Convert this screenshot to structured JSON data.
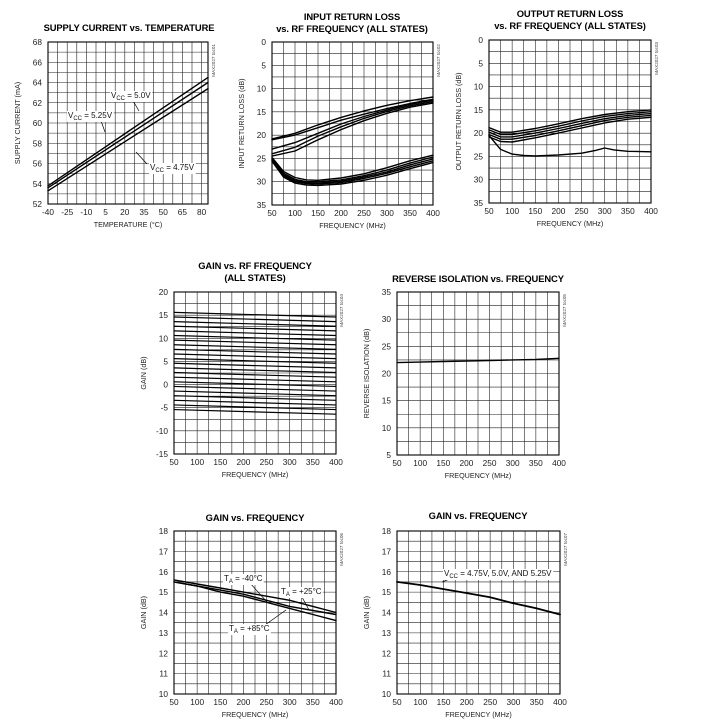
{
  "chart_data": [
    {
      "id": "supply-current",
      "type": "line",
      "title": "SUPPLY CURRENT vs. TEMPERATURE",
      "xlabel": "TEMPERATURE (°C)",
      "ylabel": "SUPPLY CURRENT (mA)",
      "side_label": "MAX2027 toc01",
      "xlim": [
        -40,
        85
      ],
      "ylim": [
        52,
        68
      ],
      "xticks": [
        -40,
        -25,
        -10,
        5,
        20,
        35,
        50,
        65,
        80
      ],
      "yticks": [
        52,
        54,
        56,
        58,
        60,
        62,
        64,
        66,
        68
      ],
      "grid": true,
      "series": [
        {
          "name": "VCC = 5.25V",
          "x": [
            -40,
            85
          ],
          "y": [
            53.8,
            64.5
          ]
        },
        {
          "name": "VCC = 5.0V",
          "x": [
            -40,
            85
          ],
          "y": [
            53.6,
            64.0
          ]
        },
        {
          "name": "VCC = 4.75V",
          "x": [
            -40,
            85
          ],
          "y": [
            53.3,
            63.4
          ]
        }
      ],
      "annotations": [
        {
          "text": "V",
          "sub": "CC",
          "rest": " = 5.0V"
        },
        {
          "text": "V",
          "sub": "CC",
          "rest": " = 5.25V"
        },
        {
          "text": "V",
          "sub": "CC",
          "rest": " = 4.75V"
        }
      ]
    },
    {
      "id": "input-return-loss",
      "type": "line",
      "title": "INPUT RETURN LOSS",
      "title2": "vs. RF FREQUENCY (ALL STATES)",
      "xlabel": "FREQUENCY (MHz)",
      "ylabel": "INPUT RETURN LOSS (dB)",
      "side_label": "MAX2027 toc02",
      "xlim": [
        50,
        400
      ],
      "ylim": [
        0,
        35
      ],
      "y_inverted": true,
      "xticks": [
        50,
        100,
        150,
        200,
        250,
        300,
        350,
        400
      ],
      "yticks": [
        0,
        5,
        10,
        15,
        20,
        25,
        30,
        35
      ],
      "grid": true,
      "series": [
        {
          "x": [
            50,
            100,
            150,
            200,
            250,
            300,
            350,
            400
          ],
          "y": [
            20.8,
            19.6,
            17.8,
            16.2,
            14.8,
            13.6,
            12.6,
            11.8
          ]
        },
        {
          "x": [
            50,
            100,
            150,
            200,
            250,
            300,
            350,
            400
          ],
          "y": [
            21.0,
            20.0,
            18.4,
            16.8,
            15.5,
            14.3,
            13.2,
            12.3
          ]
        },
        {
          "x": [
            50,
            100,
            150,
            200,
            250,
            300,
            350,
            400
          ],
          "y": [
            23.0,
            21.6,
            19.6,
            17.6,
            16.0,
            14.6,
            13.4,
            12.5
          ]
        },
        {
          "x": [
            50,
            100,
            150,
            200,
            250,
            300,
            350,
            400
          ],
          "y": [
            24.0,
            22.6,
            20.2,
            18.2,
            16.4,
            14.9,
            13.7,
            12.8
          ]
        },
        {
          "x": [
            50,
            100,
            150,
            200,
            250,
            300,
            350,
            400
          ],
          "y": [
            24.5,
            23.4,
            21.0,
            18.8,
            16.9,
            15.3,
            14.0,
            13.1
          ]
        },
        {
          "x": [
            50,
            75,
            100,
            125,
            150,
            200,
            250,
            300,
            350,
            400
          ],
          "y": [
            24.8,
            27.8,
            29.1,
            29.6,
            29.7,
            29.2,
            28.3,
            27.0,
            25.5,
            24.3
          ]
        },
        {
          "x": [
            50,
            75,
            100,
            125,
            150,
            200,
            250,
            300,
            350,
            400
          ],
          "y": [
            25.0,
            28.2,
            29.5,
            30.0,
            30.0,
            29.6,
            28.7,
            27.5,
            26.0,
            24.7
          ]
        },
        {
          "x": [
            50,
            75,
            100,
            125,
            150,
            200,
            250,
            300,
            350,
            400
          ],
          "y": [
            25.2,
            28.5,
            29.8,
            30.2,
            30.3,
            29.9,
            29.0,
            27.9,
            26.4,
            25.1
          ]
        },
        {
          "x": [
            50,
            75,
            100,
            125,
            150,
            200,
            250,
            300,
            350,
            400
          ],
          "y": [
            25.4,
            28.7,
            30.0,
            30.4,
            30.5,
            30.2,
            29.3,
            28.2,
            26.8,
            25.5
          ]
        },
        {
          "x": [
            50,
            75,
            100,
            125,
            150,
            200,
            250,
            300,
            350,
            400
          ],
          "y": [
            25.6,
            29.0,
            30.3,
            30.7,
            30.8,
            30.5,
            29.7,
            28.6,
            27.2,
            25.9
          ]
        }
      ]
    },
    {
      "id": "output-return-loss",
      "type": "line",
      "title": "OUTPUT RETURN LOSS",
      "title2": "vs. RF FREQUENCY (ALL STATES)",
      "xlabel": "FREQUENCY (MHz)",
      "ylabel": "OUTPUT RETURN LOSS (dB)",
      "side_label": "MAX2027 toc03",
      "xlim": [
        50,
        400
      ],
      "ylim": [
        0,
        35
      ],
      "y_inverted": true,
      "xticks": [
        50,
        100,
        150,
        200,
        250,
        300,
        350,
        400
      ],
      "yticks": [
        0,
        5,
        10,
        15,
        20,
        25,
        30,
        35
      ],
      "grid": true,
      "series": [
        {
          "x": [
            50,
            75,
            100,
            150,
            200,
            250,
            300,
            350,
            400
          ],
          "y": [
            18.8,
            19.8,
            19.8,
            19.0,
            18.0,
            16.9,
            16.0,
            15.4,
            15.0
          ]
        },
        {
          "x": [
            50,
            75,
            100,
            150,
            200,
            250,
            300,
            350,
            400
          ],
          "y": [
            19.3,
            20.3,
            20.3,
            19.5,
            18.5,
            17.4,
            16.4,
            15.8,
            15.4
          ]
        },
        {
          "x": [
            50,
            75,
            100,
            150,
            200,
            250,
            300,
            350,
            400
          ],
          "y": [
            19.8,
            20.8,
            20.8,
            20.0,
            19.0,
            17.9,
            16.9,
            16.2,
            15.8
          ]
        },
        {
          "x": [
            50,
            75,
            100,
            150,
            200,
            250,
            300,
            350,
            400
          ],
          "y": [
            20.3,
            21.3,
            21.3,
            20.5,
            19.5,
            18.4,
            17.3,
            16.6,
            16.2
          ]
        },
        {
          "x": [
            50,
            75,
            100,
            150,
            200,
            250,
            300,
            350,
            400
          ],
          "y": [
            20.8,
            21.8,
            21.9,
            21.0,
            20.0,
            18.9,
            17.8,
            17.0,
            16.6
          ]
        },
        {
          "x": [
            50,
            75,
            100,
            125,
            150,
            200,
            250,
            280,
            300,
            320,
            350,
            400
          ],
          "y": [
            20.5,
            23.5,
            24.5,
            24.8,
            24.9,
            24.7,
            24.3,
            23.7,
            23.2,
            23.6,
            23.9,
            24.0
          ]
        }
      ]
    },
    {
      "id": "gain-rf-all-states",
      "type": "line",
      "title": "GAIN vs. RF FREQUENCY",
      "title2": "(ALL STATES)",
      "xlabel": "FREQUENCY (MHz)",
      "ylabel": "GAIN (dB)",
      "side_label": "MAX2027 toc04",
      "xlim": [
        50,
        400
      ],
      "ylim": [
        -15,
        20
      ],
      "xticks": [
        50,
        100,
        150,
        200,
        250,
        300,
        350,
        400
      ],
      "yticks": [
        -15,
        -10,
        -5,
        0,
        5,
        10,
        15,
        20
      ],
      "grid": true,
      "series_x": [
        50,
        400
      ],
      "series_y_start": [
        15.6,
        14.6,
        13.6,
        12.6,
        11.6,
        10.6,
        9.6,
        8.6,
        7.6,
        6.6,
        5.6,
        4.6,
        3.6,
        2.6,
        1.6,
        0.6,
        -0.4,
        -1.4,
        -2.4,
        -3.4,
        -4.4,
        -5.4
      ],
      "series_y_end": [
        14.6,
        13.6,
        12.6,
        11.6,
        10.6,
        9.6,
        8.6,
        7.6,
        6.6,
        5.6,
        4.6,
        3.6,
        2.6,
        1.6,
        0.6,
        -0.4,
        -1.4,
        -2.4,
        -3.4,
        -4.4,
        -5.4,
        -6.4
      ]
    },
    {
      "id": "reverse-isolation",
      "type": "line",
      "title": "REVERSE ISOLATION vs. FREQUENCY",
      "xlabel": "FREQUENCY (MHz)",
      "ylabel": "REVERSE ISOLATION (dB)",
      "side_label": "MAX2027 toc05",
      "xlim": [
        50,
        400
      ],
      "ylim": [
        5,
        35
      ],
      "xticks": [
        50,
        100,
        150,
        200,
        250,
        300,
        350,
        400
      ],
      "yticks": [
        5,
        10,
        15,
        20,
        25,
        30,
        35
      ],
      "grid": true,
      "series": [
        {
          "x": [
            50,
            100,
            150,
            200,
            250,
            300,
            350,
            400
          ],
          "y": [
            22.0,
            22.1,
            22.2,
            22.3,
            22.4,
            22.5,
            22.6,
            22.8
          ]
        }
      ]
    },
    {
      "id": "gain-temperature",
      "type": "line",
      "title": "GAIN vs. FREQUENCY",
      "xlabel": "FREQUENCY (MHz)",
      "ylabel": "GAIN (dB)",
      "side_label": "MAX2027 toc06",
      "xlim": [
        50,
        400
      ],
      "ylim": [
        10,
        18
      ],
      "xticks": [
        50,
        100,
        150,
        200,
        250,
        300,
        350,
        400
      ],
      "yticks": [
        10,
        11,
        12,
        13,
        14,
        15,
        16,
        17,
        18
      ],
      "grid": true,
      "series": [
        {
          "name": "TA = -40°C",
          "x": [
            50,
            100,
            150,
            200,
            250,
            300,
            350,
            400
          ],
          "y": [
            15.6,
            15.4,
            15.2,
            15.0,
            14.8,
            14.6,
            14.3,
            14.0
          ]
        },
        {
          "name": "TA = +25°C",
          "x": [
            50,
            100,
            150,
            200,
            250,
            300,
            350,
            400
          ],
          "y": [
            15.5,
            15.3,
            15.1,
            14.9,
            14.6,
            14.3,
            14.1,
            13.9
          ]
        },
        {
          "name": "TA = +85°C",
          "x": [
            50,
            100,
            150,
            200,
            250,
            300,
            350,
            400
          ],
          "y": [
            15.5,
            15.3,
            15.0,
            14.8,
            14.5,
            14.2,
            13.9,
            13.6
          ]
        }
      ],
      "annotations": [
        {
          "text": "T",
          "sub": "A",
          "rest": " = -40°C"
        },
        {
          "text": "T",
          "sub": "A",
          "rest": " = +25°C"
        },
        {
          "text": "T",
          "sub": "A",
          "rest": " = +85°C"
        }
      ]
    },
    {
      "id": "gain-vcc",
      "type": "line",
      "title": "GAIN vs. FREQUENCY",
      "xlabel": "FREQUENCY (MHz)",
      "ylabel": "GAIN (dB)",
      "side_label": "MAX2027 toc07",
      "xlim": [
        50,
        400
      ],
      "ylim": [
        10,
        18
      ],
      "xticks": [
        50,
        100,
        150,
        200,
        250,
        300,
        350,
        400
      ],
      "yticks": [
        10,
        11,
        12,
        13,
        14,
        15,
        16,
        17,
        18
      ],
      "grid": true,
      "series": [
        {
          "name": "VCC = 4.75V, 5.0V, AND 5.25V",
          "x": [
            50,
            100,
            150,
            200,
            250,
            300,
            350,
            400
          ],
          "y": [
            15.5,
            15.35,
            15.15,
            14.95,
            14.75,
            14.45,
            14.2,
            13.9
          ]
        }
      ],
      "annotations": [
        {
          "text": "V",
          "sub": "CC",
          "rest": " = 4.75V, 5.0V, AND 5.25V"
        }
      ]
    }
  ]
}
